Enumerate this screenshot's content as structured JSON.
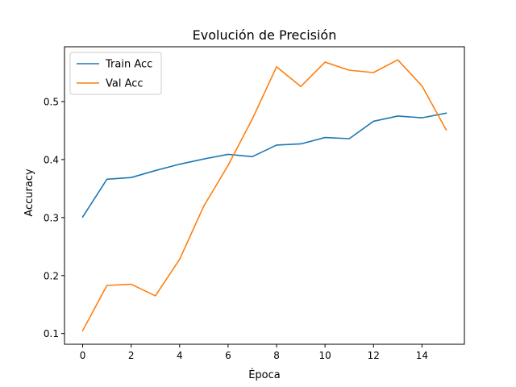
{
  "chart_data": {
    "type": "line",
    "title": "Evolución de Precisión",
    "xlabel": "Época",
    "ylabel": "Accuracy",
    "xlim": [
      -0.75,
      15.75
    ],
    "ylim": [
      0.0815,
      0.5945
    ],
    "x_ticks": [
      0,
      2,
      4,
      6,
      8,
      10,
      12,
      14
    ],
    "y_ticks": [
      0.1,
      0.2,
      0.3,
      0.4,
      0.5
    ],
    "grid": false,
    "legend_position": "top-left",
    "x": [
      0,
      1,
      2,
      3,
      4,
      5,
      6,
      7,
      8,
      9,
      10,
      11,
      12,
      13,
      14,
      15
    ],
    "series": [
      {
        "name": "Train Acc",
        "color": "#1f77b4",
        "values": [
          0.301,
          0.366,
          0.369,
          0.381,
          0.392,
          0.401,
          0.409,
          0.405,
          0.425,
          0.427,
          0.438,
          0.436,
          0.466,
          0.475,
          0.472,
          0.48
        ]
      },
      {
        "name": "Val Acc",
        "color": "#ff7f0e",
        "values": [
          0.105,
          0.183,
          0.185,
          0.165,
          0.228,
          0.32,
          0.39,
          0.47,
          0.56,
          0.526,
          0.568,
          0.554,
          0.55,
          0.572,
          0.527,
          0.451
        ]
      }
    ]
  }
}
